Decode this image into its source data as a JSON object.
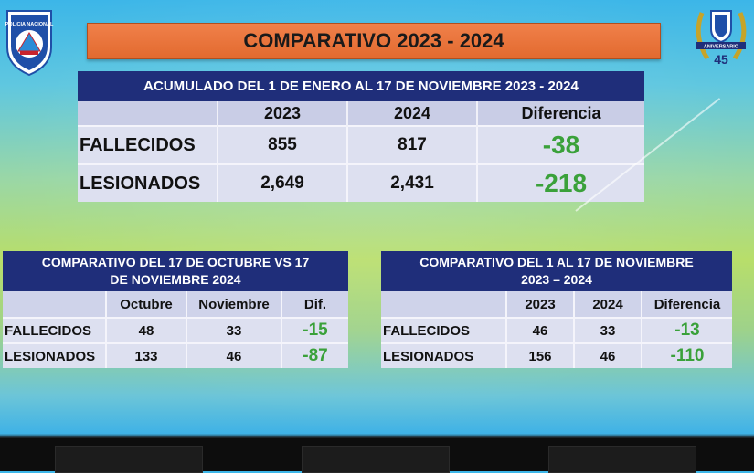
{
  "title": "COMPARATIVO 2023 - 2024",
  "logo_left": {
    "text": "POLICIA NACIONAL",
    "colors": {
      "blue": "#1f4fa8",
      "red": "#c8232c"
    }
  },
  "logo_right": {
    "text": "ANIVERSARIO",
    "number": "45"
  },
  "main_table": {
    "header": "ACUMULADO DEL 1 DE ENERO AL 17 DE NOVIEMBRE  2023 - 2024",
    "columns": [
      "",
      "2023",
      "2024",
      "Diferencia"
    ],
    "rows": [
      {
        "label": "FALLECIDOS",
        "values": [
          "855",
          "817"
        ],
        "diff": "-38"
      },
      {
        "label": "LESIONADOS",
        "values": [
          "2,649",
          "2,431"
        ],
        "diff": "-218"
      }
    ]
  },
  "left_table": {
    "header_line1": "COMPARATIVO DEL 17 DE OCTUBRE VS 17",
    "header_line2": "DE NOVIEMBRE 2024",
    "columns": [
      "",
      "Octubre",
      "Noviembre",
      "Dif."
    ],
    "rows": [
      {
        "label": "FALLECIDOS",
        "values": [
          "48",
          "33"
        ],
        "diff": "-15"
      },
      {
        "label": "LESIONADOS",
        "values": [
          "133",
          "46"
        ],
        "diff": "-87"
      }
    ]
  },
  "right_table": {
    "header_line1": "COMPARATIVO DEL 1 AL 17 DE NOVIEMBRE",
    "header_line2": "2023 – 2024",
    "columns": [
      "",
      "2023",
      "2024",
      "Diferencia"
    ],
    "rows": [
      {
        "label": "FALLECIDOS",
        "values": [
          "46",
          "33"
        ],
        "diff": "-13"
      },
      {
        "label": "LESIONADOS",
        "values": [
          "156",
          "46"
        ],
        "diff": "-110"
      }
    ]
  },
  "colors": {
    "header_navy": "#1f2e7a",
    "title_orange": "#e26a2f",
    "diff_green": "#3aa13a"
  }
}
